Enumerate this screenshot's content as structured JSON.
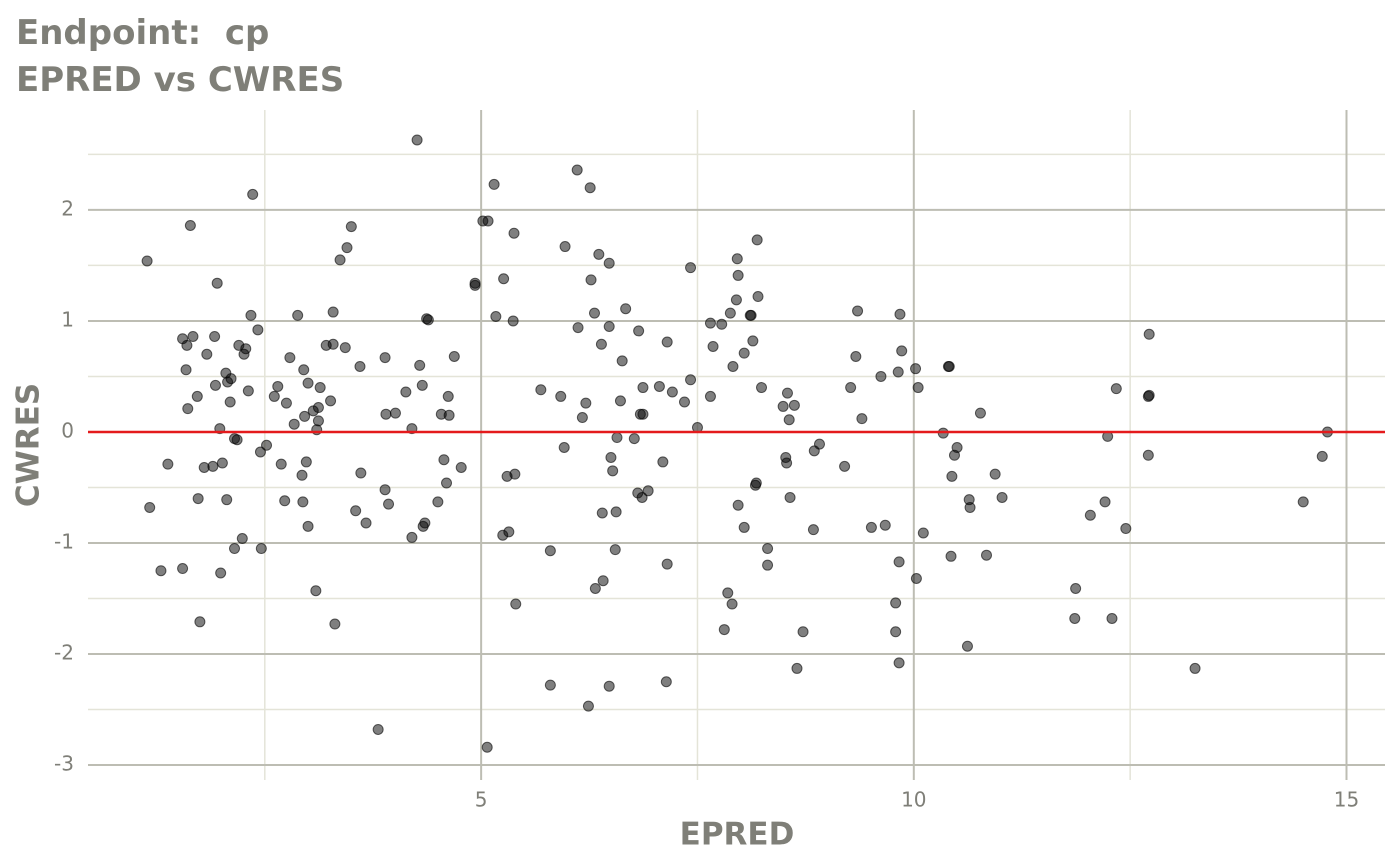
{
  "chart_data": {
    "type": "scatter",
    "title": "Endpoint:  cp",
    "subtitle": "EPRED vs CWRES",
    "x_label": "EPRED",
    "y_label": "CWRES",
    "color": "#000000",
    "reference_line": {
      "y": 0,
      "color": "#e41a1c"
    },
    "xlim": [
      0.457,
      15.445
    ],
    "ylim": [
      -3.135,
      2.81
    ],
    "xticks": [
      5,
      10,
      15
    ],
    "yticks": [
      -3,
      -2,
      -1,
      0,
      1,
      2
    ],
    "minor_xticks": [
      2.5,
      7.5,
      12.5
    ],
    "minor_yticks": [
      -2.5,
      -1.5,
      -0.5,
      0.5,
      1.5,
      2.5
    ],
    "grid": true,
    "x": [
      1.14,
      1.17,
      1.3,
      1.38,
      1.55,
      1.55,
      1.59,
      1.6,
      1.61,
      1.64,
      1.67,
      1.72,
      1.73,
      1.75,
      1.8,
      1.83,
      1.9,
      1.92,
      1.93,
      1.95,
      1.98,
      1.99,
      2.01,
      2.05,
      2.06,
      2.07,
      2.1,
      2.11,
      2.15,
      2.15,
      2.18,
      2.2,
      2.24,
      2.26,
      2.28,
      2.31,
      2.34,
      2.36,
      2.42,
      2.45,
      2.46,
      2.52,
      2.61,
      2.65,
      2.69,
      2.73,
      2.75,
      2.79,
      2.84,
      2.88,
      2.93,
      2.94,
      2.95,
      2.96,
      2.98,
      3.0,
      3.0,
      3.06,
      3.09,
      3.1,
      3.12,
      3.14,
      3.12,
      3.21,
      3.26,
      3.29,
      3.29,
      3.31,
      3.37,
      3.43,
      3.45,
      3.5,
      3.55,
      3.6,
      3.61,
      3.67,
      3.81,
      3.89,
      3.89,
      3.9,
      3.93,
      4.01,
      4.13,
      4.2,
      4.2,
      4.26,
      4.29,
      4.32,
      4.33,
      4.35,
      4.37,
      4.39,
      4.5,
      4.54,
      4.57,
      4.6,
      4.62,
      4.63,
      4.69,
      4.77,
      4.93,
      4.93,
      5.02,
      5.08,
      5.07,
      5.15,
      5.17,
      5.25,
      5.26,
      5.3,
      5.32,
      5.37,
      5.38,
      5.39,
      5.4,
      5.69,
      5.8,
      5.8,
      5.92,
      5.96,
      5.97,
      6.11,
      6.12,
      6.17,
      6.21,
      6.24,
      6.26,
      6.27,
      6.31,
      6.32,
      6.36,
      6.39,
      6.4,
      6.41,
      6.48,
      6.48,
      6.48,
      6.5,
      6.52,
      6.55,
      6.56,
      6.57,
      6.61,
      6.63,
      6.67,
      6.77,
      6.81,
      6.82,
      6.84,
      6.86,
      6.87,
      6.87,
      6.93,
      7.06,
      7.1,
      7.14,
      7.15,
      7.15,
      7.21,
      7.35,
      7.42,
      7.42,
      7.5,
      7.65,
      7.65,
      7.68,
      7.78,
      7.81,
      7.85,
      7.88,
      7.9,
      7.91,
      7.95,
      7.96,
      7.97,
      7.97,
      8.04,
      8.04,
      8.11,
      8.12,
      8.14,
      8.17,
      8.18,
      8.19,
      8.2,
      8.24,
      8.31,
      8.31,
      8.49,
      8.52,
      8.53,
      8.54,
      8.56,
      8.57,
      8.62,
      8.65,
      8.72,
      8.84,
      8.85,
      8.91,
      9.2,
      9.27,
      9.33,
      9.35,
      9.4,
      9.51,
      9.62,
      9.67,
      9.79,
      9.79,
      9.82,
      9.83,
      9.83,
      9.84,
      9.86,
      10.02,
      10.03,
      10.05,
      10.11,
      10.34,
      10.4,
      10.41,
      10.43,
      10.44,
      10.47,
      10.5,
      10.62,
      10.64,
      10.65,
      10.77,
      10.84,
      10.94,
      11.02,
      11.87,
      11.86,
      12.04,
      12.21,
      12.24,
      12.29,
      12.34,
      12.45,
      12.71,
      12.71,
      12.72,
      12.72,
      13.25,
      14.5,
      14.72,
      14.78
    ],
    "values": [
      1.54,
      -0.68,
      -1.25,
      -0.29,
      -1.23,
      0.84,
      0.56,
      0.78,
      0.21,
      1.86,
      0.86,
      0.32,
      -0.6,
      -1.71,
      -0.32,
      0.7,
      -0.31,
      0.86,
      0.42,
      1.34,
      0.03,
      -1.27,
      -0.28,
      0.53,
      -0.61,
      0.45,
      0.27,
      0.48,
      -0.06,
      -1.05,
      -0.07,
      0.78,
      -0.96,
      0.7,
      0.75,
      0.37,
      1.05,
      2.14,
      0.92,
      -0.18,
      -1.05,
      -0.12,
      0.32,
      0.41,
      -0.29,
      -0.62,
      0.26,
      0.67,
      0.07,
      1.05,
      -0.39,
      -0.63,
      0.56,
      0.14,
      -0.27,
      0.44,
      -0.85,
      0.19,
      -1.43,
      0.02,
      0.22,
      0.4,
      0.1,
      0.78,
      0.28,
      1.08,
      0.79,
      -1.73,
      1.55,
      0.76,
      1.66,
      1.85,
      -0.71,
      0.59,
      -0.37,
      -0.82,
      -2.68,
      0.67,
      -0.52,
      0.16,
      -0.65,
      0.17,
      0.36,
      -0.95,
      0.03,
      2.63,
      0.6,
      0.42,
      -0.85,
      -0.82,
      1.02,
      1.01,
      -0.63,
      0.16,
      -0.25,
      -0.46,
      0.32,
      0.15,
      0.68,
      -0.32,
      1.34,
      1.32,
      1.9,
      1.9,
      -2.84,
      2.23,
      1.04,
      -0.93,
      1.38,
      -0.4,
      -0.9,
      1.0,
      1.79,
      -0.38,
      -1.55,
      0.38,
      -2.28,
      -1.07,
      0.32,
      -0.14,
      1.67,
      2.36,
      0.94,
      0.13,
      0.26,
      -2.47,
      2.2,
      1.37,
      1.07,
      -1.41,
      1.6,
      0.79,
      -0.73,
      -1.34,
      0.95,
      1.52,
      -2.29,
      -0.23,
      -0.35,
      -1.06,
      -0.72,
      -0.05,
      0.28,
      0.64,
      1.11,
      -0.06,
      -0.55,
      0.91,
      0.16,
      -0.59,
      0.4,
      0.16,
      -0.53,
      0.41,
      -0.27,
      -2.25,
      -1.19,
      0.81,
      0.36,
      0.27,
      0.47,
      1.48,
      0.04,
      0.32,
      0.98,
      0.77,
      0.97,
      -1.78,
      -1.45,
      1.07,
      -1.55,
      0.59,
      1.19,
      1.56,
      -0.66,
      1.41,
      -0.86,
      0.71,
      1.05,
      1.05,
      0.82,
      -0.48,
      -0.46,
      1.73,
      1.22,
      0.4,
      -1.05,
      -1.2,
      0.23,
      -0.23,
      -0.28,
      0.35,
      0.11,
      -0.59,
      0.24,
      -2.13,
      -1.8,
      -0.88,
      -0.17,
      -0.11,
      -0.31,
      0.4,
      0.68,
      1.09,
      0.12,
      -0.86,
      0.5,
      -0.84,
      -1.54,
      -1.8,
      0.54,
      -2.08,
      -1.17,
      1.06,
      0.73,
      0.57,
      -1.32,
      0.4,
      -0.91,
      -0.01,
      0.59,
      0.59,
      -1.12,
      -0.4,
      -0.21,
      -0.14,
      -1.93,
      -0.61,
      -0.68,
      0.17,
      -1.11,
      -0.38,
      -0.59,
      -1.41,
      -1.68,
      -0.75,
      -0.63,
      -0.04,
      -1.68,
      0.39,
      -0.87,
      -0.21,
      0.32,
      0.33,
      0.88,
      -2.13,
      -0.63,
      -0.22,
      0.0
    ]
  }
}
